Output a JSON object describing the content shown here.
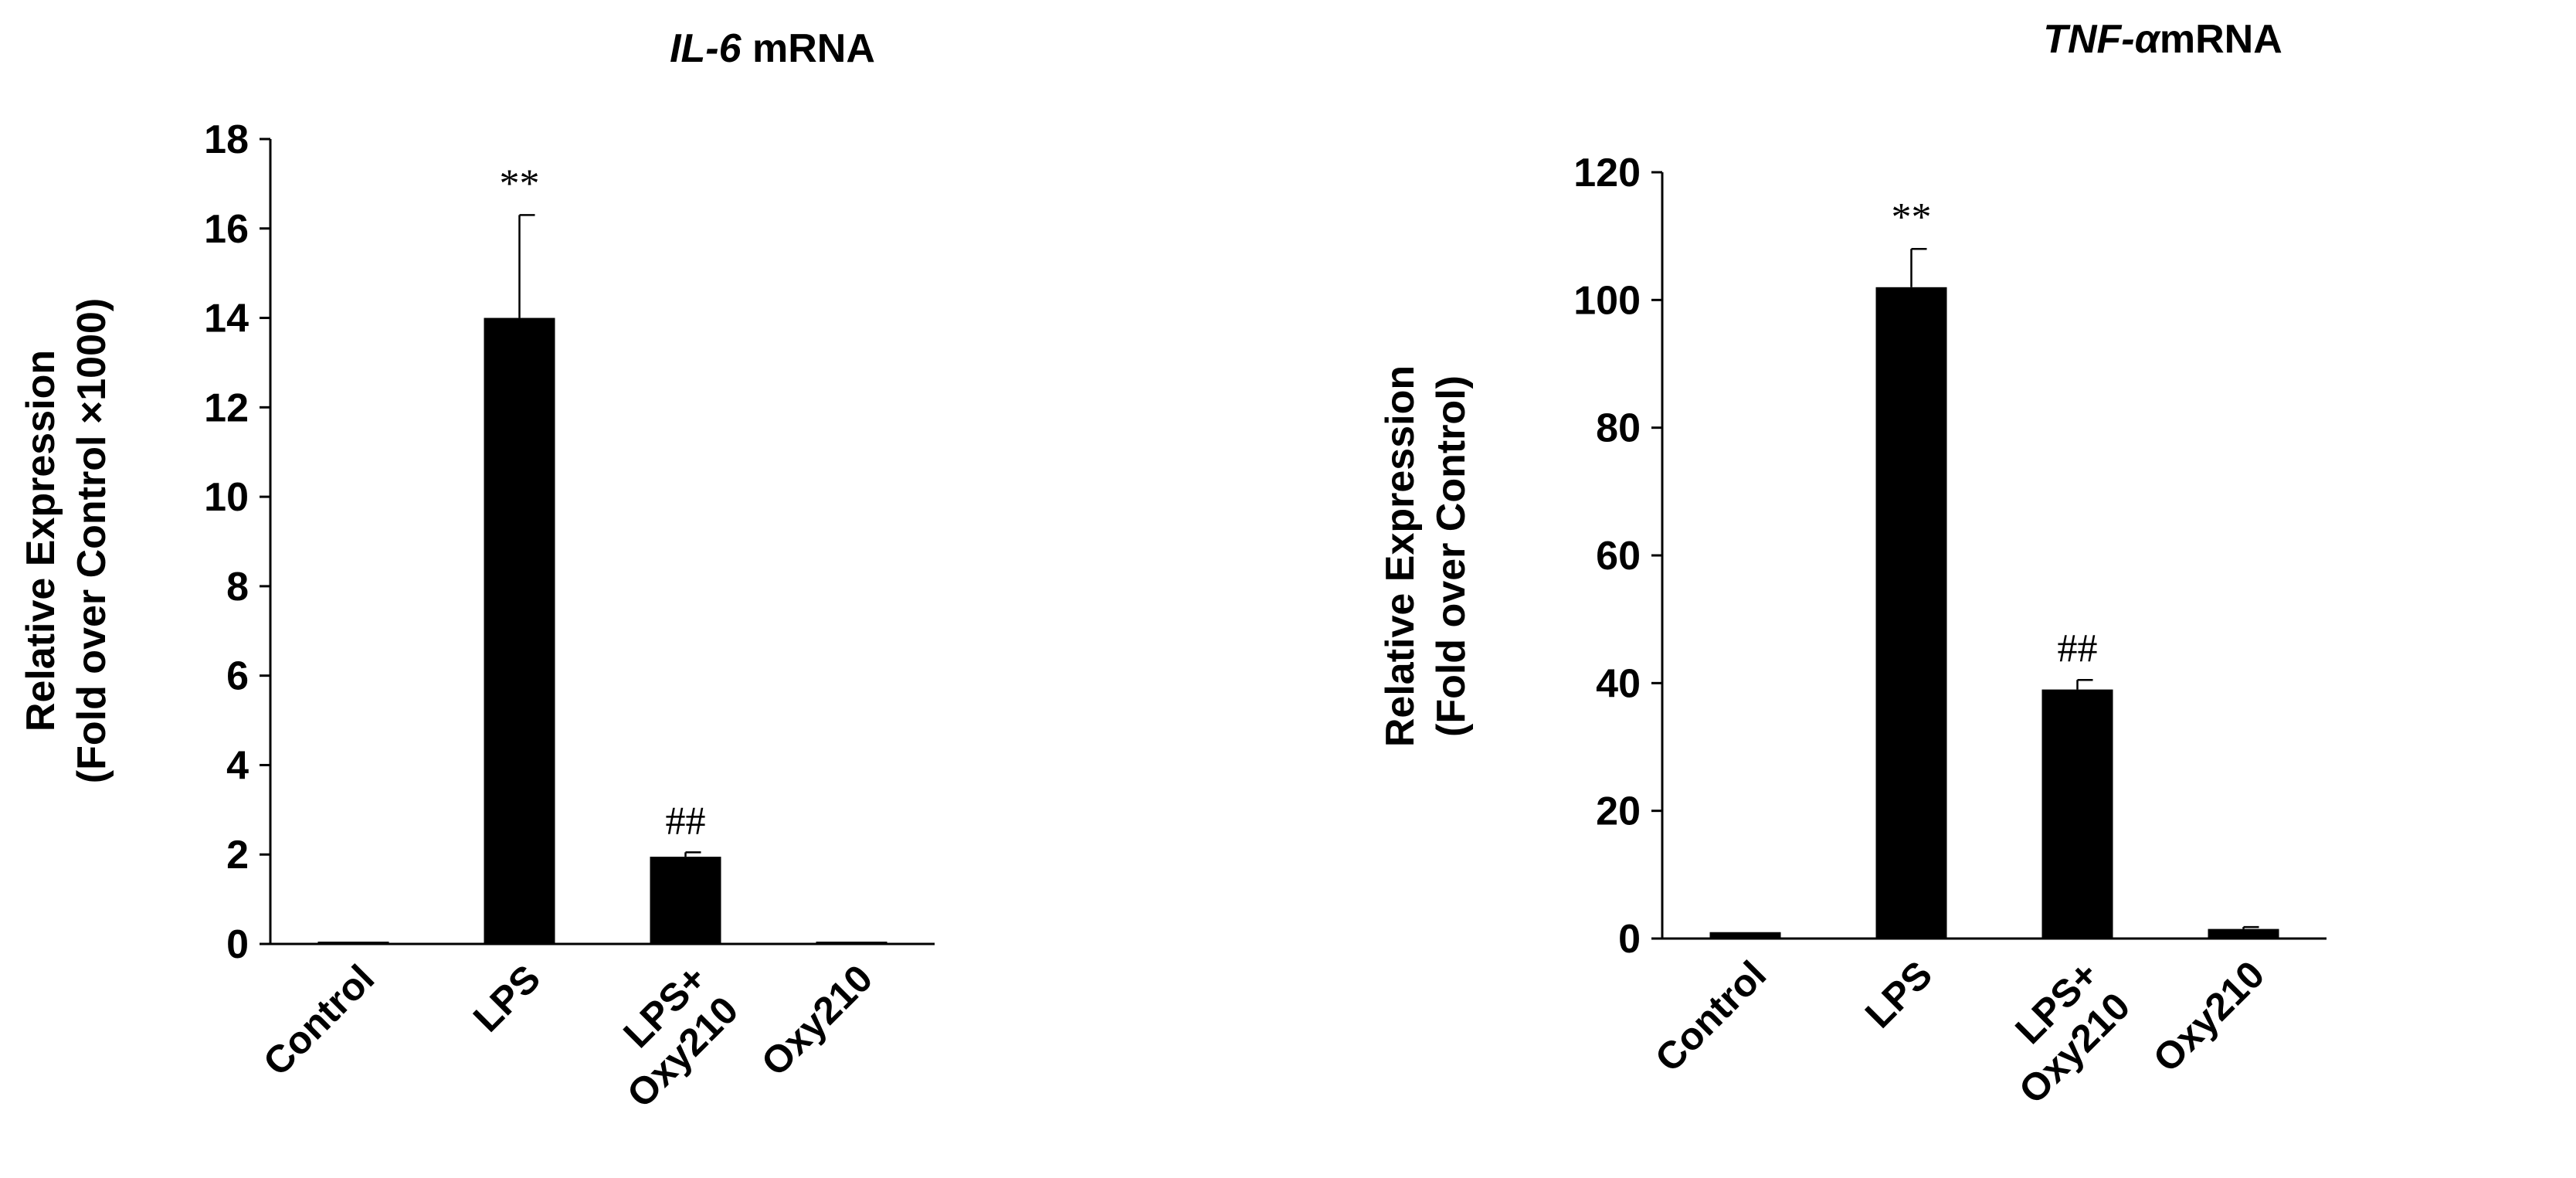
{
  "chart_data": [
    {
      "type": "bar",
      "title": {
        "italic": "IL-6",
        "rest": " mRNA"
      },
      "ylabel": [
        "Relative Expression",
        "(Fold over Control ×1000)"
      ],
      "categories": [
        [
          "Control"
        ],
        [
          "LPS"
        ],
        [
          "LPS+",
          "Oxy210"
        ],
        [
          "Oxy210"
        ]
      ],
      "values": [
        0.05,
        14.0,
        1.95,
        0.05
      ],
      "errors": [
        0,
        2.3,
        0.1,
        0
      ],
      "annotations": [
        "",
        "**",
        "##",
        ""
      ],
      "ylim": [
        0,
        18
      ],
      "yticks": [
        0,
        2,
        4,
        6,
        8,
        10,
        12,
        14,
        16,
        18
      ],
      "bar_color": "#000000",
      "grid": false
    },
    {
      "type": "bar",
      "title": {
        "italic": "TNF-α",
        "rest": "mRNA"
      },
      "ylabel": [
        "Relative Expression",
        "(Fold over Control)"
      ],
      "categories": [
        [
          "Control"
        ],
        [
          "LPS"
        ],
        [
          "LPS+",
          "Oxy210"
        ],
        [
          "Oxy210"
        ]
      ],
      "values": [
        1.0,
        102.0,
        39.0,
        1.5
      ],
      "errors": [
        0,
        6.0,
        1.5,
        0.3
      ],
      "annotations": [
        "",
        "**",
        "##",
        ""
      ],
      "ylim": [
        0,
        120
      ],
      "yticks": [
        0,
        20,
        40,
        60,
        80,
        100,
        120
      ],
      "bar_color": "#000000",
      "grid": false
    }
  ]
}
